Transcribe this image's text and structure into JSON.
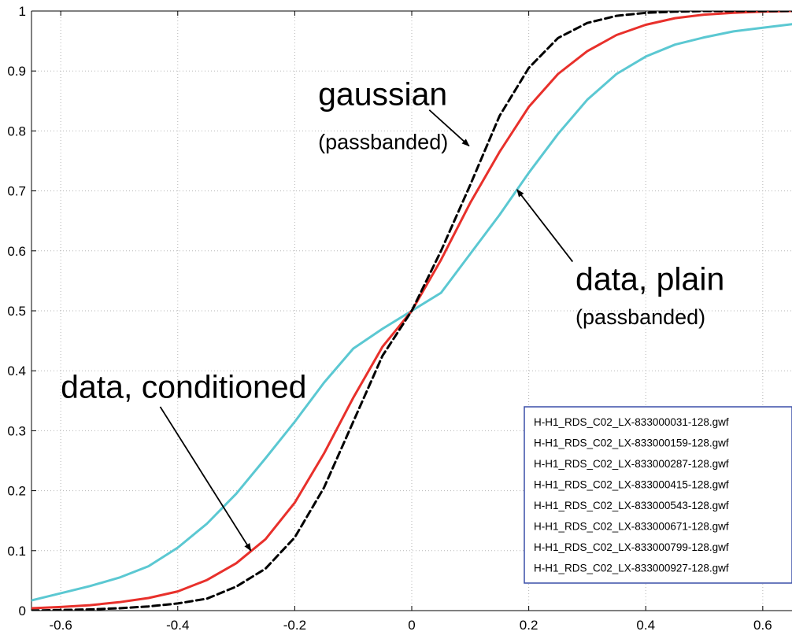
{
  "chart_data": {
    "type": "line",
    "title": "",
    "xlabel": "",
    "ylabel": "",
    "xlim": [
      -0.65,
      0.65
    ],
    "ylim": [
      0,
      1
    ],
    "grid": true,
    "x_ticks": [
      -0.6,
      -0.4,
      -0.2,
      0,
      0.2,
      0.4,
      0.6
    ],
    "x_tick_labels": [
      "-0.6",
      "-0.4",
      "-0.2",
      "0",
      "0.2",
      "0.4",
      "0.6"
    ],
    "y_ticks": [
      0,
      0.1,
      0.2,
      0.3,
      0.4,
      0.5,
      0.6,
      0.7,
      0.8,
      0.9,
      1
    ],
    "y_tick_labels": [
      "0",
      "0.1",
      "0.2",
      "0.3",
      "0.4",
      "0.5",
      "0.6",
      "0.7",
      "0.8",
      "0.9",
      "1"
    ],
    "series": [
      {
        "color": "#5bc8d2",
        "style": "solid",
        "x": [
          -0.65,
          -0.6,
          -0.55,
          -0.5,
          -0.45,
          -0.4,
          -0.35,
          -0.3,
          -0.25,
          -0.2,
          -0.15,
          -0.1,
          -0.05,
          0,
          0.05,
          0.1,
          0.15,
          0.2,
          0.25,
          0.3,
          0.35,
          0.4,
          0.45,
          0.5,
          0.55,
          0.6,
          0.65
        ],
        "y": [
          0.017,
          0.029,
          0.041,
          0.055,
          0.074,
          0.105,
          0.145,
          0.195,
          0.254,
          0.315,
          0.38,
          0.437,
          0.47,
          0.5,
          0.53,
          0.595,
          0.66,
          0.73,
          0.795,
          0.852,
          0.895,
          0.924,
          0.944,
          0.956,
          0.966,
          0.972,
          0.978
        ]
      },
      {
        "color": "#e8302b",
        "style": "solid",
        "x": [
          -0.65,
          -0.6,
          -0.55,
          -0.5,
          -0.45,
          -0.4,
          -0.35,
          -0.3,
          -0.25,
          -0.2,
          -0.15,
          -0.1,
          -0.05,
          0,
          0.05,
          0.1,
          0.15,
          0.2,
          0.25,
          0.3,
          0.35,
          0.4,
          0.45,
          0.5,
          0.55,
          0.6,
          0.65
        ],
        "y": [
          0.004,
          0.006,
          0.009,
          0.014,
          0.021,
          0.032,
          0.051,
          0.079,
          0.119,
          0.18,
          0.262,
          0.355,
          0.44,
          0.5,
          0.585,
          0.68,
          0.765,
          0.84,
          0.895,
          0.933,
          0.96,
          0.977,
          0.988,
          0.994,
          0.997,
          0.999,
          1.0
        ]
      },
      {
        "color": "#000000",
        "style": "dashed",
        "x": [
          -0.65,
          -0.6,
          -0.55,
          -0.5,
          -0.45,
          -0.4,
          -0.35,
          -0.3,
          -0.25,
          -0.2,
          -0.15,
          -0.1,
          -0.05,
          0,
          0.05,
          0.1,
          0.15,
          0.2,
          0.25,
          0.3,
          0.35,
          0.4,
          0.45,
          0.5,
          0.55,
          0.6,
          0.65
        ],
        "y": [
          0.0,
          0.001,
          0.002,
          0.004,
          0.007,
          0.012,
          0.02,
          0.04,
          0.07,
          0.122,
          0.205,
          0.315,
          0.425,
          0.5,
          0.6,
          0.71,
          0.825,
          0.905,
          0.955,
          0.98,
          0.992,
          0.997,
          0.999,
          1.0,
          1.0,
          1.0,
          1.0
        ]
      }
    ],
    "annotations": [
      {
        "text": "gaussian",
        "size": "large",
        "label_x": -0.16,
        "label_y": 0.843,
        "arrow_from": [
          0.03,
          0.835
        ],
        "arrow_to": [
          0.098,
          0.775
        ]
      },
      {
        "text": "(passbanded)",
        "size": "small",
        "label_x": -0.16,
        "label_y": 0.77
      },
      {
        "text": "data, plain",
        "size": "large",
        "label_x": 0.28,
        "label_y": 0.535,
        "arrow_from": [
          0.275,
          0.582
        ],
        "arrow_to": [
          0.18,
          0.702
        ]
      },
      {
        "text": "(passbanded)",
        "size": "small",
        "label_x": 0.28,
        "label_y": 0.478
      },
      {
        "text": "data, conditioned",
        "size": "large",
        "label_x": -0.6,
        "label_y": 0.355,
        "arrow_from": [
          -0.43,
          0.34
        ],
        "arrow_to": [
          -0.275,
          0.1
        ]
      }
    ],
    "legend": {
      "placement": "bottom-right",
      "entries": [
        "H-H1_RDS_C02_LX-833000031-128.gwf",
        "H-H1_RDS_C02_LX-833000159-128.gwf",
        "H-H1_RDS_C02_LX-833000287-128.gwf",
        "H-H1_RDS_C02_LX-833000415-128.gwf",
        "H-H1_RDS_C02_LX-833000543-128.gwf",
        "H-H1_RDS_C02_LX-833000671-128.gwf",
        "H-H1_RDS_C02_LX-833000799-128.gwf",
        "H-H1_RDS_C02_LX-833000927-128.gwf"
      ]
    }
  }
}
